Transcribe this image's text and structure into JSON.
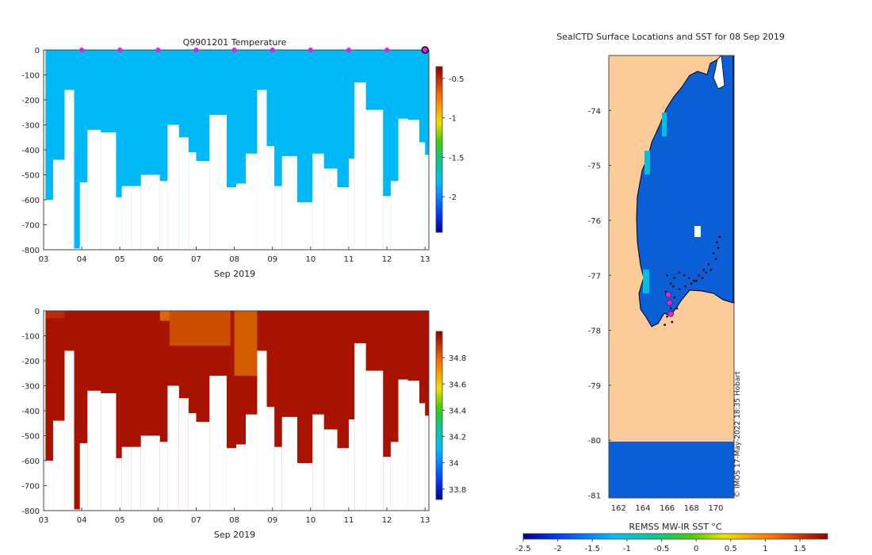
{
  "panels": {
    "temperature_title": "Q9901201  Temperature",
    "depth_ticks": [
      "0",
      "-100",
      "-200",
      "-300",
      "-400",
      "-500",
      "-600",
      "-700",
      "-800"
    ],
    "date_ticks": [
      "03",
      "04",
      "05",
      "06",
      "07",
      "08",
      "09",
      "10",
      "11",
      "12",
      "13"
    ],
    "date_label": "Sep 2019",
    "temp_colorbar_ticks": [
      "-0.5",
      "-1",
      "-1.5",
      "-2"
    ],
    "sal_colorbar_ticks": [
      "34.8",
      "34.6",
      "34.4",
      "34.2",
      "34",
      "33.8"
    ]
  },
  "map": {
    "title": "SealCTD Surface Locations and SST for 08 Sep 2019",
    "lat_ticks": [
      "-74",
      "-75",
      "-76",
      "-77",
      "-78",
      "-79",
      "-80",
      "-81"
    ],
    "lon_ticks": [
      "162",
      "164",
      "166",
      "168",
      "170"
    ],
    "sst_label": "REMSS MW-IR SST °C",
    "sst_ticks": [
      "-2.5",
      "-2",
      "-1.5",
      "-1",
      "-0.5",
      "0",
      "0.5",
      "1",
      "1.5"
    ],
    "credit": "© IMOS 17-May-2022 18:35 Hobart"
  },
  "colors": {
    "temp_fill": "#00b8f5",
    "sal_fill": "#a81200",
    "land": "#fbcb9a",
    "sea": "#0a5fd6",
    "track_point": "#111111",
    "current_point": "#e020e0"
  },
  "chart_data": [
    {
      "type": "heatmap",
      "title": "Q9901201  Temperature",
      "variable": "temperature",
      "xlabel": "Sep 2019",
      "ylabel": "",
      "xlim": [
        3.0,
        13.1
      ],
      "ylim": [
        -800,
        0
      ],
      "x": [
        3.05,
        3.25,
        3.55,
        3.8,
        3.95,
        4.15,
        4.5,
        4.9,
        5.05,
        5.3,
        5.55,
        6.05,
        6.25,
        6.55,
        6.8,
        7.0,
        7.35,
        7.8,
        8.05,
        8.3,
        8.6,
        8.85,
        9.05,
        9.25,
        9.65,
        10.05,
        10.35,
        10.7,
        11.0,
        11.15,
        11.45,
        11.9,
        12.1,
        12.3,
        12.55,
        12.85,
        13.0
      ],
      "max_depth": [
        -600,
        -440,
        -160,
        -795,
        -530,
        -320,
        -330,
        -590,
        -545,
        -545,
        -500,
        -525,
        -300,
        -350,
        -410,
        -445,
        -260,
        -550,
        -535,
        -415,
        -160,
        -385,
        -545,
        -425,
        -610,
        -415,
        -475,
        -550,
        -435,
        -130,
        -240,
        -585,
        -525,
        -275,
        -280,
        -370,
        -420
      ],
      "colorbar": {
        "min": -2.45,
        "max": -0.35,
        "ticks": [
          -0.5,
          -1,
          -1.5,
          -2
        ]
      },
      "profile_markers_x": [
        4,
        5,
        6,
        7,
        8,
        9,
        10,
        11,
        12
      ],
      "latest_marker_x": 13.0
    },
    {
      "type": "heatmap",
      "title": "",
      "variable": "salinity",
      "xlabel": "Sep 2019",
      "ylabel": "",
      "xlim": [
        3.0,
        13.1
      ],
      "ylim": [
        -800,
        0
      ],
      "x": [
        3.05,
        3.25,
        3.55,
        3.8,
        3.95,
        4.15,
        4.5,
        4.9,
        5.05,
        5.3,
        5.55,
        6.05,
        6.25,
        6.55,
        6.8,
        7.0,
        7.35,
        7.8,
        8.05,
        8.3,
        8.6,
        8.85,
        9.05,
        9.25,
        9.65,
        10.05,
        10.35,
        10.7,
        11.0,
        11.15,
        11.45,
        11.9,
        12.1,
        12.3,
        12.55,
        12.85,
        13.0
      ],
      "max_depth": [
        -600,
        -440,
        -160,
        -795,
        -530,
        -320,
        -330,
        -590,
        -545,
        -545,
        -500,
        -525,
        -300,
        -350,
        -410,
        -445,
        -260,
        -550,
        -535,
        -415,
        -160,
        -385,
        -545,
        -425,
        -610,
        -415,
        -475,
        -550,
        -435,
        -130,
        -240,
        -585,
        -525,
        -275,
        -280,
        -370,
        -420
      ],
      "colorbar": {
        "min": 33.72,
        "max": 35.0,
        "ticks": [
          34.8,
          34.6,
          34.4,
          34.2,
          34,
          33.8
        ]
      }
    },
    {
      "type": "scatter",
      "title": "SealCTD Surface Locations and SST for 08 Sep 2019",
      "xlabel": "",
      "ylabel": "",
      "xlim": [
        161.2,
        171.5
      ],
      "ylim": [
        -81.05,
        -73.0
      ],
      "colorbar": {
        "label": "REMSS MW-IR SST °C",
        "min": -2.5,
        "max": 1.9,
        "ticks": [
          -2.5,
          -2,
          -1.5,
          -1,
          -0.5,
          0,
          0.5,
          1,
          1.5
        ]
      },
      "track_points": [
        {
          "lon": 166.0,
          "lat": -77.0
        },
        {
          "lon": 166.3,
          "lat": -77.15
        },
        {
          "lon": 166.6,
          "lat": -77.05
        },
        {
          "lon": 167.0,
          "lat": -76.95
        },
        {
          "lon": 167.4,
          "lat": -77.0
        },
        {
          "lon": 167.8,
          "lat": -77.05
        },
        {
          "lon": 168.2,
          "lat": -77.1
        },
        {
          "lon": 168.6,
          "lat": -77.0
        },
        {
          "lon": 169.0,
          "lat": -76.9
        },
        {
          "lon": 169.4,
          "lat": -76.8
        },
        {
          "lon": 169.8,
          "lat": -76.6
        },
        {
          "lon": 170.1,
          "lat": -76.4
        },
        {
          "lon": 170.3,
          "lat": -76.3
        },
        {
          "lon": 170.0,
          "lat": -76.7
        },
        {
          "lon": 169.6,
          "lat": -76.9
        },
        {
          "lon": 168.9,
          "lat": -77.05
        },
        {
          "lon": 168.0,
          "lat": -77.15
        },
        {
          "lon": 167.5,
          "lat": -77.2
        },
        {
          "lon": 167.0,
          "lat": -77.25
        },
        {
          "lon": 166.6,
          "lat": -77.4
        },
        {
          "lon": 166.3,
          "lat": -77.6
        },
        {
          "lon": 166.0,
          "lat": -77.75
        },
        {
          "lon": 165.8,
          "lat": -77.9
        },
        {
          "lon": 166.4,
          "lat": -77.85
        },
        {
          "lon": 166.8,
          "lat": -77.6
        },
        {
          "lon": 166.5,
          "lat": -77.2
        },
        {
          "lon": 165.9,
          "lat": -77.3
        },
        {
          "lon": 168.4,
          "lat": -77.1
        },
        {
          "lon": 169.2,
          "lat": -76.95
        },
        {
          "lon": 170.2,
          "lat": -76.5
        }
      ],
      "current_points": [
        {
          "lon": 166.1,
          "lat": -77.35
        },
        {
          "lon": 166.2,
          "lat": -77.5
        },
        {
          "lon": 166.3,
          "lat": -77.7
        }
      ]
    }
  ]
}
